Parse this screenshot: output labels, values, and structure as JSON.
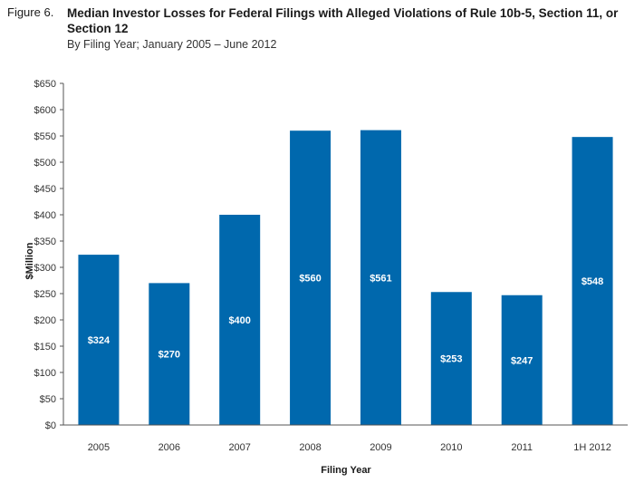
{
  "figure_label": "Figure 6.",
  "chart_data": {
    "type": "bar",
    "title": "Median Investor Losses for Federal Filings with Alleged Violations of Rule 10b-5, Section 11, or Section 12",
    "subtitle": "By Filing Year; January 2005 – June 2012",
    "xlabel": "Filing Year",
    "ylabel": "$Million",
    "categories": [
      "2005",
      "2006",
      "2007",
      "2008",
      "2009",
      "2010",
      "2011",
      "1H 2012"
    ],
    "values": [
      324,
      270,
      400,
      560,
      561,
      253,
      247,
      548
    ],
    "data_labels": [
      "$324",
      "$270",
      "$400",
      "$560",
      "$561",
      "$253",
      "$247",
      "$548"
    ],
    "ylim": [
      0,
      650
    ],
    "yticks": [
      0,
      50,
      100,
      150,
      200,
      250,
      300,
      350,
      400,
      450,
      500,
      550,
      600,
      650
    ],
    "ytick_labels": [
      "$0",
      "$50",
      "$100",
      "$150",
      "$200",
      "$250",
      "$300",
      "$350",
      "$400",
      "$450",
      "$500",
      "$550",
      "$600",
      "$650"
    ],
    "bar_color": "#0068ad",
    "grid": false,
    "legend": "none"
  }
}
